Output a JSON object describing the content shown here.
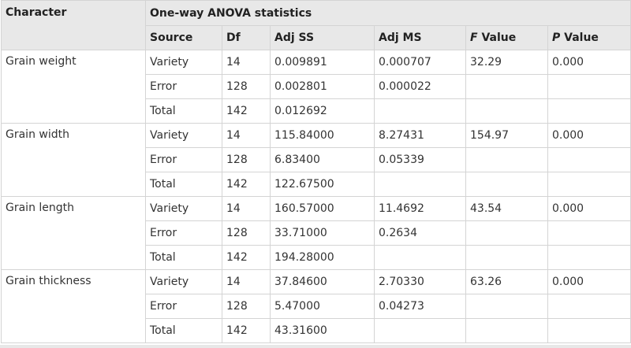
{
  "header": {
    "character": "Character",
    "group_title": "One-way ANOVA statistics",
    "columns": {
      "source": "Source",
      "df": "Df",
      "adj_ss": "Adj SS",
      "adj_ms": "Adj MS",
      "f_italic": "F",
      "f_rest": " Value",
      "p_italic": "P",
      "p_rest": " Value"
    }
  },
  "groups": [
    {
      "character": "Grain weight",
      "rows": [
        {
          "source": "Variety",
          "df": "14",
          "adj_ss": "0.009891",
          "adj_ms": "0.000707",
          "f": "32.29",
          "p": "0.000"
        },
        {
          "source": "Error",
          "df": "128",
          "adj_ss": "0.002801",
          "adj_ms": "0.000022",
          "f": "",
          "p": ""
        },
        {
          "source": "Total",
          "df": "142",
          "adj_ss": "0.012692",
          "adj_ms": "",
          "f": "",
          "p": ""
        }
      ]
    },
    {
      "character": "Grain width",
      "rows": [
        {
          "source": "Variety",
          "df": "14",
          "adj_ss": "115.84000",
          "adj_ms": "8.27431",
          "f": "154.97",
          "p": "0.000"
        },
        {
          "source": "Error",
          "df": "128",
          "adj_ss": "6.83400",
          "adj_ms": "0.05339",
          "f": "",
          "p": ""
        },
        {
          "source": "Total",
          "df": "142",
          "adj_ss": "122.67500",
          "adj_ms": "",
          "f": "",
          "p": ""
        }
      ]
    },
    {
      "character": "Grain length",
      "rows": [
        {
          "source": "Variety",
          "df": "14",
          "adj_ss": "160.57000",
          "adj_ms": "11.4692",
          "f": "43.54",
          "p": "0.000"
        },
        {
          "source": "Error",
          "df": "128",
          "adj_ss": "33.71000",
          "adj_ms": "0.2634",
          "f": "",
          "p": ""
        },
        {
          "source": "Total",
          "df": "142",
          "adj_ss": "194.28000",
          "adj_ms": "",
          "f": "",
          "p": ""
        }
      ]
    },
    {
      "character": "Grain thickness",
      "rows": [
        {
          "source": "Variety",
          "df": "14",
          "adj_ss": "37.84600",
          "adj_ms": "2.70330",
          "f": "63.26",
          "p": "0.000"
        },
        {
          "source": "Error",
          "df": "128",
          "adj_ss": "5.47000",
          "adj_ms": "0.04273",
          "f": "",
          "p": ""
        },
        {
          "source": "Total",
          "df": "142",
          "adj_ss": "43.31600",
          "adj_ms": "",
          "f": "",
          "p": ""
        }
      ]
    }
  ]
}
